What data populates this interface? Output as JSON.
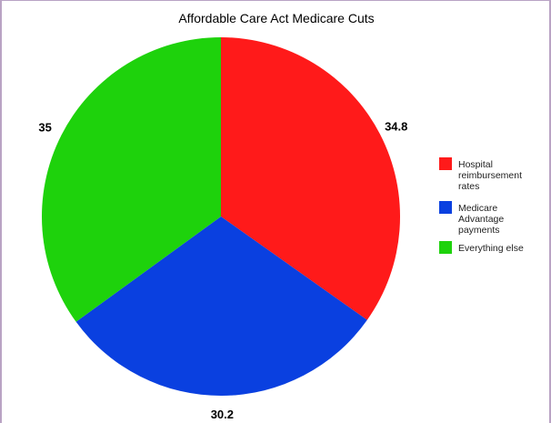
{
  "chart_data": {
    "type": "pie",
    "title": "Affordable Care Act Medicare Cuts",
    "slices": [
      {
        "label": "Hospital reimbursement rates",
        "legend_lines": [
          "Hospital",
          "reimbursement",
          "rates"
        ],
        "value": 34.8,
        "value_label": "34.8",
        "color": "#ff1a1a"
      },
      {
        "label": "Medicare Advantage payments",
        "legend_lines": [
          "Medicare",
          "Advantage",
          "payments"
        ],
        "value": 30.2,
        "value_label": "30.2",
        "color": "#0a40e0"
      },
      {
        "label": "Everything else",
        "legend_lines": [
          "Everything else"
        ],
        "value": 35,
        "value_label": "35",
        "color": "#1ed20c"
      }
    ],
    "start_angle": "top, clockwise",
    "legend_position": "right"
  }
}
